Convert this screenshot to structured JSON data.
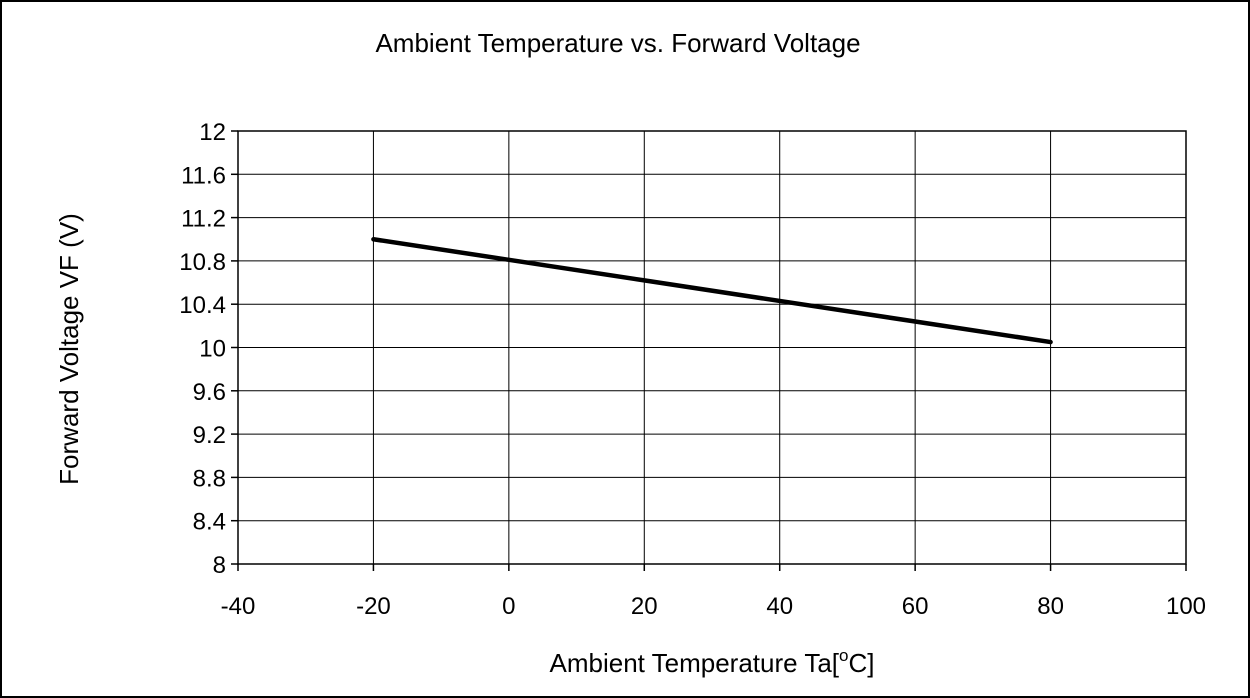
{
  "chart_data": {
    "type": "line",
    "title": "Ambient Temperature vs. Forward Voltage",
    "xlabel": {
      "before_superscript": "Ambient Temperature Ta[",
      "superscript": "o",
      "after_superscript": "C]"
    },
    "ylabel": "Forward Voltage VF  (V)",
    "xlim": [
      -40,
      100
    ],
    "ylim": [
      8,
      12
    ],
    "x_ticks": [
      -40,
      -20,
      0,
      20,
      40,
      60,
      80,
      100
    ],
    "x_tick_labels": [
      "-40",
      "-20",
      "0",
      "20",
      "40",
      "60",
      "80",
      "100"
    ],
    "y_ticks": [
      8,
      8.4,
      8.8,
      9.2,
      9.6,
      10,
      10.4,
      10.8,
      11.2,
      11.6,
      12
    ],
    "y_tick_labels": [
      "8",
      "8.4",
      "8.8",
      "9.2",
      "9.6",
      "10",
      "10.4",
      "10.8",
      "11.2",
      "11.6",
      "12"
    ],
    "grid": true,
    "series": [
      {
        "x": [
          -20,
          0,
          20,
          40,
          60,
          80
        ],
        "y": [
          11.0,
          10.81,
          10.62,
          10.43,
          10.24,
          10.05
        ]
      }
    ],
    "colors": {
      "line": "#000000",
      "grid": "#000000",
      "frame": "#000000",
      "background": "#ffffff"
    }
  }
}
